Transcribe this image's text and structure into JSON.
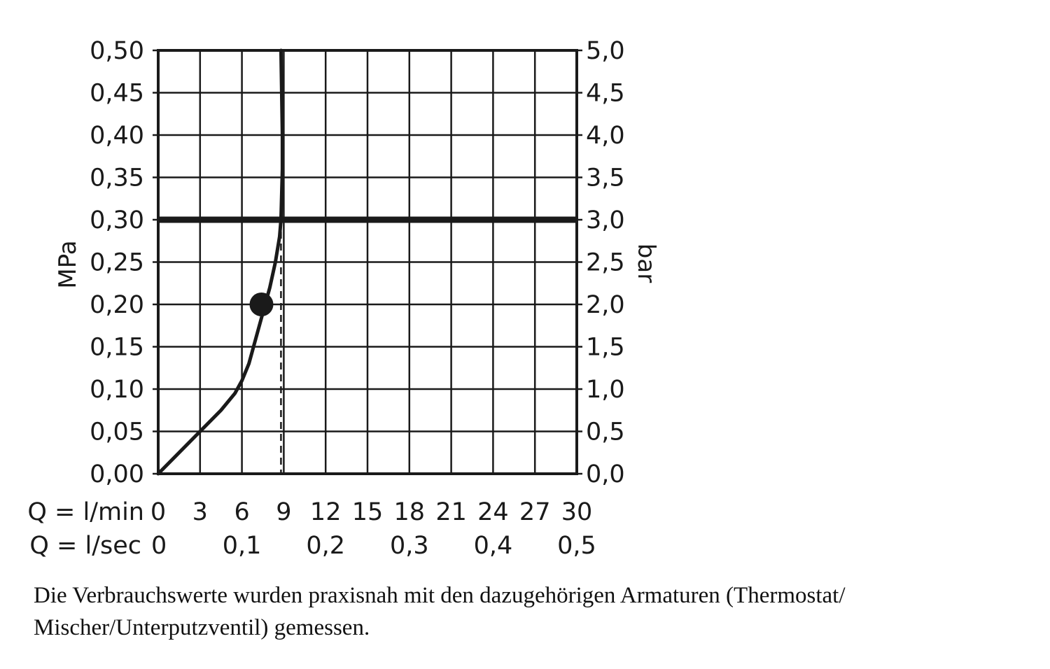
{
  "chart_data": {
    "type": "line",
    "ylabel_left": "MPa",
    "ylabel_right": "bar",
    "yticks_left": [
      "0,00",
      "0,05",
      "0,10",
      "0,15",
      "0,20",
      "0,25",
      "0,30",
      "0,35",
      "0,40",
      "0,45",
      "0,50"
    ],
    "yticks_right": [
      "0,0",
      "0,5",
      "1,0",
      "1,5",
      "2,0",
      "2,5",
      "3,0",
      "3,5",
      "4,0",
      "4,5",
      "5,0"
    ],
    "ylim": [
      0,
      0.5
    ],
    "xlim": [
      0,
      30
    ],
    "x_row1_label": "Q = l/min",
    "xticks_row1": [
      "0",
      "3",
      "6",
      "9",
      "12",
      "15",
      "18",
      "21",
      "24",
      "27",
      "30"
    ],
    "x_row2_label": "Q = l/sec",
    "xticks_row2": [
      "0",
      "0,1",
      "0,2",
      "0,3",
      "0,4",
      "0,5"
    ],
    "grid": true,
    "series": [
      {
        "x": [
          0,
          1.5,
          3,
          4.5,
          5.5,
          6,
          6.5,
          7,
          7.5,
          8,
          8.4,
          8.7,
          8.8,
          8.85,
          8.9,
          8.9,
          8.85,
          8.8
        ],
        "y": [
          0,
          0.025,
          0.05,
          0.075,
          0.095,
          0.11,
          0.13,
          0.16,
          0.19,
          0.22,
          0.25,
          0.28,
          0.3,
          0.33,
          0.36,
          0.4,
          0.45,
          0.5
        ]
      }
    ],
    "reference_line_y": 0.3,
    "reference_line_x": 8.8,
    "marker": {
      "x": 7.4,
      "y": 0.2
    },
    "colors": {
      "line": "#1a1a1a",
      "grid": "#1a1a1a",
      "background": "#ffffff"
    }
  },
  "caption": {
    "line1": "Die Verbrauchswerte wurden praxisnah mit den dazugehörigen Armaturen (Thermostat/",
    "line2": "Mischer/Unterputzventil) gemessen."
  }
}
